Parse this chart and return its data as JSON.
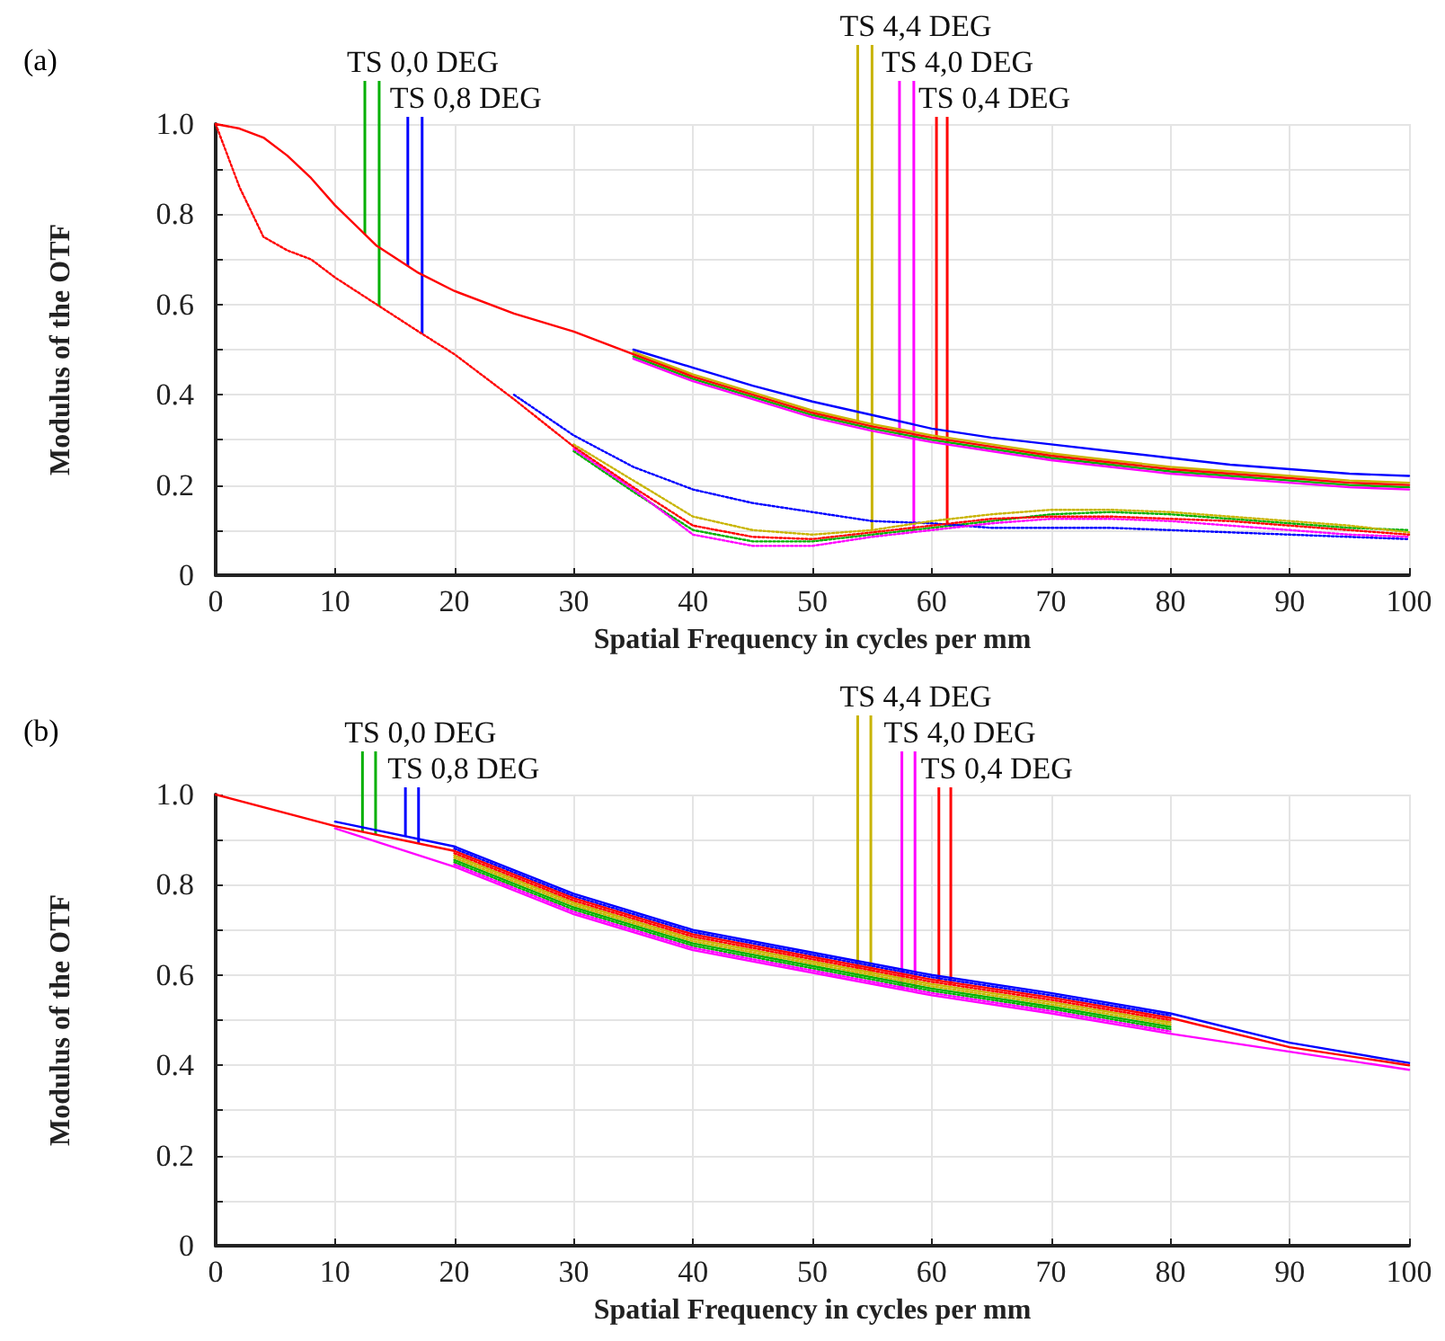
{
  "chart_data": [
    {
      "type": "line",
      "title": "(a)",
      "xlabel": "Spatial Frequency in cycles per mm",
      "ylabel": "Modulus of the OTF",
      "xlim": [
        0,
        100
      ],
      "xticks": [
        0,
        10,
        20,
        30,
        40,
        50,
        60,
        70,
        80,
        90,
        100
      ],
      "ylim": [
        0,
        1
      ],
      "yticks": [
        0,
        {
          "value": 0.1,
          "label": null
        },
        0.2,
        {
          "value": 0.3,
          "label": null
        },
        0.4,
        {
          "value": 0.5,
          "label": null
        },
        0.6,
        {
          "value": 0.7,
          "label": null
        },
        0.8,
        {
          "value": 0.9,
          "label": null
        },
        {
          "value": 1,
          "label": "1.0"
        }
      ],
      "grid": true,
      "marker": "none",
      "x": [
        0,
        2,
        4,
        6,
        8,
        10,
        13.5,
        17,
        20,
        25,
        30,
        35,
        40,
        45,
        50,
        55,
        60,
        65,
        70,
        75,
        80,
        85,
        90,
        95,
        100
      ],
      "series": [
        {
          "color": "#00b000",
          "line_style": "solid",
          "values": [
            null,
            null,
            null,
            null,
            null,
            null,
            null,
            null,
            null,
            null,
            null,
            0.485,
            0.435,
            0.395,
            0.355,
            0.325,
            0.3,
            0.28,
            0.26,
            0.245,
            0.23,
            0.22,
            0.21,
            0.2,
            0.195
          ]
        },
        {
          "color": "#00b000",
          "line_style": "dotted",
          "values": [
            null,
            null,
            null,
            null,
            null,
            null,
            null,
            null,
            null,
            null,
            0.275,
            0.185,
            0.1,
            0.075,
            0.075,
            0.09,
            0.105,
            0.12,
            0.135,
            0.14,
            0.135,
            0.125,
            0.115,
            0.105,
            0.1
          ]
        },
        {
          "color": "#0000ff",
          "line_style": "solid",
          "values": [
            null,
            null,
            null,
            null,
            null,
            null,
            null,
            null,
            null,
            null,
            null,
            0.5,
            0.46,
            0.42,
            0.385,
            0.355,
            0.325,
            0.305,
            0.29,
            0.275,
            0.26,
            0.245,
            0.235,
            0.225,
            0.22
          ]
        },
        {
          "color": "#0000ff",
          "line_style": "dotted",
          "values": [
            null,
            null,
            null,
            null,
            null,
            null,
            null,
            null,
            null,
            0.4,
            0.31,
            0.24,
            0.19,
            0.16,
            0.14,
            0.12,
            0.115,
            0.105,
            0.105,
            0.105,
            0.1,
            0.095,
            0.09,
            0.085,
            0.08
          ]
        },
        {
          "color": "#c8b400",
          "line_style": "solid",
          "values": [
            null,
            null,
            null,
            null,
            null,
            null,
            null,
            null,
            null,
            null,
            null,
            0.495,
            0.445,
            0.405,
            0.365,
            0.335,
            0.31,
            0.29,
            0.27,
            0.255,
            0.24,
            0.23,
            0.22,
            0.21,
            0.205
          ]
        },
        {
          "color": "#c8b400",
          "line_style": "dotted",
          "values": [
            null,
            null,
            null,
            null,
            null,
            null,
            null,
            null,
            null,
            null,
            0.29,
            0.21,
            0.13,
            0.1,
            0.09,
            0.1,
            0.12,
            0.135,
            0.145,
            0.145,
            0.14,
            0.13,
            0.12,
            0.11,
            0.095
          ]
        },
        {
          "color": "#ff00ff",
          "line_style": "solid",
          "values": [
            null,
            null,
            null,
            null,
            null,
            null,
            null,
            null,
            null,
            null,
            null,
            0.48,
            0.43,
            0.39,
            0.35,
            0.32,
            0.295,
            0.275,
            0.255,
            0.24,
            0.225,
            0.215,
            0.205,
            0.195,
            0.19
          ]
        },
        {
          "color": "#ff00ff",
          "line_style": "dotted",
          "values": [
            null,
            null,
            null,
            null,
            null,
            null,
            null,
            null,
            null,
            null,
            0.28,
            0.19,
            0.09,
            0.065,
            0.065,
            0.085,
            0.1,
            0.115,
            0.125,
            0.125,
            0.12,
            0.11,
            0.1,
            0.09,
            0.085
          ]
        },
        {
          "color": "#ff0000",
          "line_style": "solid",
          "values": [
            1,
            0.99,
            0.97,
            0.93,
            0.88,
            0.82,
            0.73,
            0.67,
            0.63,
            0.58,
            0.54,
            0.49,
            0.44,
            0.4,
            0.36,
            0.33,
            0.305,
            0.285,
            0.265,
            0.25,
            0.235,
            0.225,
            0.215,
            0.205,
            0.2
          ]
        },
        {
          "color": "#ff0000",
          "line_style": "dotted",
          "values": [
            1,
            0.86,
            0.75,
            0.72,
            0.7,
            0.66,
            0.6,
            0.54,
            0.49,
            0.39,
            0.285,
            0.195,
            0.11,
            0.085,
            0.08,
            0.095,
            0.11,
            0.125,
            0.13,
            0.13,
            0.125,
            0.12,
            0.11,
            0.1,
            0.09
          ]
        }
      ],
      "ref_lines": [
        {
          "axis": "x",
          "value": 12.5,
          "color": "#00b000",
          "label": "TS 0,0 DEG"
        },
        {
          "axis": "x",
          "value": 13.7,
          "color": "#00b000"
        },
        {
          "axis": "x",
          "value": 16.1,
          "color": "#0000ff",
          "label": "TS 0,8 DEG"
        },
        {
          "axis": "x",
          "value": 17.3,
          "color": "#0000ff"
        },
        {
          "axis": "x",
          "value": 53.8,
          "color": "#c8b400",
          "label": "TS 4,4 DEG"
        },
        {
          "axis": "x",
          "value": 55,
          "color": "#c8b400"
        },
        {
          "axis": "x",
          "value": 57.3,
          "color": "#ff00ff",
          "label": "TS 4,0 DEG"
        },
        {
          "axis": "x",
          "value": 58.5,
          "color": "#ff00ff"
        },
        {
          "axis": "x",
          "value": 60.4,
          "color": "#ff0000",
          "label": "TS 0,4 DEG"
        },
        {
          "axis": "x",
          "value": 61.3,
          "color": "#ff0000"
        }
      ]
    },
    {
      "type": "line",
      "title": "(b)",
      "xlabel": "Spatial Frequency in cycles per mm",
      "ylabel": "Modulus of the OTF",
      "xlim": [
        0,
        100
      ],
      "xticks": [
        0,
        10,
        20,
        30,
        40,
        50,
        60,
        70,
        80,
        90,
        100
      ],
      "ylim": [
        0,
        1
      ],
      "yticks": [
        0,
        {
          "value": 0.1,
          "label": null
        },
        0.2,
        {
          "value": 0.3,
          "label": null
        },
        0.4,
        {
          "value": 0.5,
          "label": null
        },
        0.6,
        {
          "value": 0.7,
          "label": null
        },
        0.8,
        {
          "value": 0.9,
          "label": null
        },
        {
          "value": 1,
          "label": "1.0"
        }
      ],
      "grid": true,
      "marker": "none",
      "x": [
        0,
        10,
        20,
        30,
        40,
        50,
        60,
        70,
        80,
        90,
        100
      ],
      "series": [
        {
          "color": "#00b000",
          "line_style": "solid",
          "values": [
            null,
            null,
            0.855,
            0.75,
            0.67,
            0.62,
            0.57,
            0.53,
            0.485,
            null,
            null
          ]
        },
        {
          "color": "#00b000",
          "line_style": "dotted",
          "values": [
            null,
            null,
            0.85,
            0.745,
            0.665,
            0.615,
            0.565,
            0.525,
            0.48,
            null,
            null
          ]
        },
        {
          "color": "#0000ff",
          "line_style": "solid",
          "values": [
            null,
            0.94,
            0.885,
            0.78,
            0.7,
            0.65,
            0.6,
            0.56,
            0.515,
            0.45,
            0.405
          ]
        },
        {
          "color": "#0000ff",
          "line_style": "dotted",
          "values": [
            null,
            null,
            0.88,
            0.775,
            0.695,
            0.645,
            0.595,
            0.555,
            0.51,
            null,
            null
          ]
        },
        {
          "color": "#c8b400",
          "line_style": "solid",
          "values": [
            null,
            null,
            0.865,
            0.76,
            0.68,
            0.63,
            0.58,
            0.54,
            0.495,
            null,
            null
          ]
        },
        {
          "color": "#c8b400",
          "line_style": "dotted",
          "values": [
            null,
            null,
            0.86,
            0.755,
            0.675,
            0.625,
            0.575,
            0.535,
            0.49,
            null,
            null
          ]
        },
        {
          "color": "#ff00ff",
          "line_style": "solid",
          "values": [
            null,
            0.925,
            0.84,
            0.735,
            0.655,
            0.605,
            0.555,
            0.515,
            0.47,
            0.43,
            0.39
          ]
        },
        {
          "color": "#ff00ff",
          "line_style": "dotted",
          "values": [
            null,
            null,
            0.845,
            0.74,
            0.66,
            0.61,
            0.56,
            0.52,
            0.475,
            null,
            null
          ]
        },
        {
          "color": "#ff0000",
          "line_style": "solid",
          "values": [
            1,
            0.93,
            0.875,
            0.77,
            0.69,
            0.64,
            0.59,
            0.55,
            0.505,
            0.44,
            0.4
          ]
        },
        {
          "color": "#ff0000",
          "line_style": "dotted",
          "values": [
            null,
            null,
            0.87,
            0.765,
            0.685,
            0.635,
            0.585,
            0.545,
            0.5,
            null,
            null
          ]
        }
      ],
      "ref_lines": [
        {
          "axis": "x",
          "value": 12.3,
          "color": "#00b000",
          "label": "TS 0,0 DEG"
        },
        {
          "axis": "x",
          "value": 13.4,
          "color": "#00b000"
        },
        {
          "axis": "x",
          "value": 15.9,
          "color": "#0000ff",
          "label": "TS 0,8 DEG"
        },
        {
          "axis": "x",
          "value": 17,
          "color": "#0000ff"
        },
        {
          "axis": "x",
          "value": 53.8,
          "color": "#c8b400",
          "label": "TS 4,4 DEG"
        },
        {
          "axis": "x",
          "value": 54.9,
          "color": "#c8b400"
        },
        {
          "axis": "x",
          "value": 57.5,
          "color": "#ff00ff",
          "label": "TS 4,0 DEG"
        },
        {
          "axis": "x",
          "value": 58.6,
          "color": "#ff00ff"
        },
        {
          "axis": "x",
          "value": 60.6,
          "color": "#ff0000",
          "label": "TS 0,4 DEG"
        },
        {
          "axis": "x",
          "value": 61.6,
          "color": "#ff0000"
        }
      ]
    }
  ]
}
